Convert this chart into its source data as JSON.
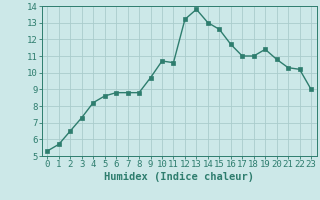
{
  "x": [
    0,
    1,
    2,
    3,
    4,
    5,
    6,
    7,
    8,
    9,
    10,
    11,
    12,
    13,
    14,
    15,
    16,
    17,
    18,
    19,
    20,
    21,
    22,
    23
  ],
  "y": [
    5.3,
    5.7,
    6.5,
    7.3,
    8.2,
    8.6,
    8.8,
    8.8,
    8.8,
    9.7,
    10.7,
    10.6,
    13.2,
    13.8,
    13.0,
    12.6,
    11.7,
    11.0,
    11.0,
    11.4,
    10.8,
    10.3,
    10.2,
    9.0
  ],
  "line_color": "#2e7d6e",
  "marker_color": "#2e7d6e",
  "bg_color": "#cce8e8",
  "grid_color": "#aacccc",
  "xlabel": "Humidex (Indice chaleur)",
  "xlim": [
    -0.5,
    23.5
  ],
  "ylim": [
    5,
    14
  ],
  "yticks": [
    5,
    6,
    7,
    8,
    9,
    10,
    11,
    12,
    13,
    14
  ],
  "xticks": [
    0,
    1,
    2,
    3,
    4,
    5,
    6,
    7,
    8,
    9,
    10,
    11,
    12,
    13,
    14,
    15,
    16,
    17,
    18,
    19,
    20,
    21,
    22,
    23
  ],
  "tick_label_fontsize": 6.5,
  "xlabel_fontsize": 7.5,
  "line_width": 1.0,
  "marker_size": 2.5
}
